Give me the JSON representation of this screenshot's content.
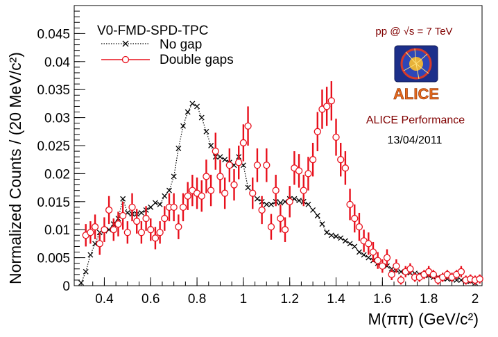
{
  "chart_data": {
    "type": "scatter",
    "title": "",
    "xlabel": "M(ππ) (GeV/c²)",
    "ylabel": "Normalized Counts / (20 MeV/c²)",
    "xlim": [
      0.27,
      2.03
    ],
    "ylim": [
      0,
      0.05
    ],
    "xticks": [
      "0.4",
      "0.6",
      "0.8",
      "1",
      "1.2",
      "1.4",
      "1.6",
      "1.8",
      "2"
    ],
    "yticks": [
      "0",
      "0.005",
      "0.01",
      "0.015",
      "0.02",
      "0.025",
      "0.03",
      "0.035",
      "0.04",
      "0.045"
    ],
    "grid": false,
    "legend": {
      "title": "V0-FMD-SPD-TPC",
      "placement": "top-left"
    },
    "annotations": {
      "energy": "pp @ √s = 7 TeV",
      "logo_text": "ALICE",
      "performance": "ALICE Performance",
      "date": "13/04/2011"
    },
    "colors": {
      "no_gap": "#000000",
      "double_gaps": "#e8101c",
      "annotation": "#800000"
    },
    "series": [
      {
        "name": "No gap",
        "style": "dotted-line-with-x-markers",
        "x": [
          0.3,
          0.32,
          0.34,
          0.36,
          0.38,
          0.4,
          0.42,
          0.44,
          0.46,
          0.48,
          0.5,
          0.52,
          0.54,
          0.56,
          0.58,
          0.6,
          0.62,
          0.64,
          0.66,
          0.68,
          0.7,
          0.72,
          0.74,
          0.76,
          0.78,
          0.8,
          0.82,
          0.84,
          0.86,
          0.88,
          0.9,
          0.92,
          0.94,
          0.96,
          0.98,
          1.0,
          1.02,
          1.04,
          1.06,
          1.08,
          1.1,
          1.12,
          1.14,
          1.16,
          1.18,
          1.2,
          1.22,
          1.24,
          1.26,
          1.28,
          1.3,
          1.32,
          1.34,
          1.36,
          1.38,
          1.4,
          1.42,
          1.44,
          1.46,
          1.48,
          1.5,
          1.52,
          1.54,
          1.56,
          1.58,
          1.6,
          1.62,
          1.64,
          1.66,
          1.68,
          1.7,
          1.72,
          1.74,
          1.76,
          1.78,
          1.8,
          1.82,
          1.84,
          1.86,
          1.88,
          1.9,
          1.92,
          1.94,
          1.96,
          1.98,
          2.0
        ],
        "y": [
          0.0005,
          0.0025,
          0.0055,
          0.0075,
          0.0095,
          0.0098,
          0.01,
          0.011,
          0.012,
          0.0155,
          0.013,
          0.0128,
          0.0128,
          0.013,
          0.0135,
          0.014,
          0.0148,
          0.0145,
          0.016,
          0.017,
          0.0195,
          0.0245,
          0.0285,
          0.031,
          0.0325,
          0.032,
          0.03,
          0.0275,
          0.025,
          0.023,
          0.023,
          0.0225,
          0.022,
          0.0215,
          0.023,
          0.0215,
          0.0175,
          0.0165,
          0.0155,
          0.015,
          0.0145,
          0.0145,
          0.015,
          0.0148,
          0.015,
          0.0155,
          0.0155,
          0.0152,
          0.015,
          0.0145,
          0.0135,
          0.0125,
          0.011,
          0.0095,
          0.009,
          0.0088,
          0.0085,
          0.008,
          0.0075,
          0.007,
          0.006,
          0.0055,
          0.005,
          0.0045,
          0.004,
          0.0035,
          0.0035,
          0.003,
          0.0028,
          0.0025,
          0.0025,
          0.0023,
          0.0022,
          0.002,
          0.002,
          0.0018,
          0.0015,
          0.0015,
          0.0013,
          0.0012,
          0.0012,
          0.001,
          0.001,
          0.0008,
          0.0008,
          0.0005
        ]
      },
      {
        "name": "Double gaps",
        "style": "open-circles-with-error-bars",
        "x": [
          0.32,
          0.34,
          0.36,
          0.38,
          0.4,
          0.42,
          0.44,
          0.46,
          0.48,
          0.5,
          0.52,
          0.54,
          0.56,
          0.58,
          0.6,
          0.62,
          0.64,
          0.66,
          0.68,
          0.7,
          0.72,
          0.74,
          0.76,
          0.78,
          0.8,
          0.82,
          0.84,
          0.86,
          0.88,
          0.9,
          0.92,
          0.94,
          0.96,
          0.98,
          1.0,
          1.02,
          1.04,
          1.06,
          1.08,
          1.1,
          1.12,
          1.14,
          1.16,
          1.18,
          1.2,
          1.22,
          1.24,
          1.26,
          1.28,
          1.3,
          1.32,
          1.34,
          1.36,
          1.38,
          1.4,
          1.42,
          1.44,
          1.46,
          1.48,
          1.5,
          1.52,
          1.54,
          1.56,
          1.58,
          1.6,
          1.62,
          1.64,
          1.66,
          1.68,
          1.7,
          1.72,
          1.74,
          1.76,
          1.78,
          1.8,
          1.82,
          1.84,
          1.86,
          1.88,
          1.9,
          1.92,
          1.94,
          1.96,
          1.98,
          2.0,
          2.02
        ],
        "y": [
          0.009,
          0.0095,
          0.0105,
          0.0075,
          0.01,
          0.0135,
          0.01,
          0.011,
          0.0125,
          0.0095,
          0.014,
          0.0115,
          0.0095,
          0.012,
          0.01,
          0.0085,
          0.0095,
          0.012,
          0.014,
          0.014,
          0.0105,
          0.014,
          0.016,
          0.017,
          0.0165,
          0.016,
          0.0195,
          0.017,
          0.024,
          0.0195,
          0.0165,
          0.0215,
          0.018,
          0.022,
          0.0255,
          0.0285,
          0.0165,
          0.0215,
          0.0135,
          0.0215,
          0.0105,
          0.017,
          0.012,
          0.01,
          0.015,
          0.021,
          0.0205,
          0.017,
          0.02,
          0.0225,
          0.0275,
          0.0315,
          0.032,
          0.033,
          0.0265,
          0.0225,
          0.021,
          0.0145,
          0.012,
          0.0105,
          0.008,
          0.0075,
          0.006,
          0.0045,
          0.0035,
          0.005,
          0.002,
          0.0035,
          0.001,
          0.0025,
          0.003,
          0.0015,
          0.0015,
          0.002,
          0.0025,
          0.002,
          0.001,
          0.0015,
          0.002,
          0.0015,
          0.002,
          0.0025,
          0.001,
          0.0012,
          0.001,
          0.0012
        ],
        "err": [
          0.002,
          0.002,
          0.0022,
          0.002,
          0.0022,
          0.0025,
          0.002,
          0.0022,
          0.0025,
          0.002,
          0.0025,
          0.0022,
          0.002,
          0.0022,
          0.002,
          0.002,
          0.002,
          0.0022,
          0.0025,
          0.0025,
          0.0022,
          0.0025,
          0.0025,
          0.0028,
          0.0028,
          0.0028,
          0.003,
          0.0028,
          0.0033,
          0.003,
          0.0028,
          0.003,
          0.0028,
          0.003,
          0.0033,
          0.0035,
          0.0028,
          0.003,
          0.0025,
          0.003,
          0.0023,
          0.0028,
          0.0025,
          0.0022,
          0.0028,
          0.003,
          0.003,
          0.0028,
          0.003,
          0.003,
          0.0035,
          0.0035,
          0.0035,
          0.0035,
          0.0033,
          0.003,
          0.003,
          0.0028,
          0.0025,
          0.0025,
          0.002,
          0.002,
          0.0018,
          0.0015,
          0.0012,
          0.0015,
          0.001,
          0.0012,
          0.0008,
          0.001,
          0.001,
          0.0008,
          0.0008,
          0.0008,
          0.001,
          0.0008,
          0.0008,
          0.0008,
          0.0008,
          0.0008,
          0.0008,
          0.001,
          0.0008,
          0.0008,
          0.0008,
          0.0008
        ]
      }
    ]
  }
}
